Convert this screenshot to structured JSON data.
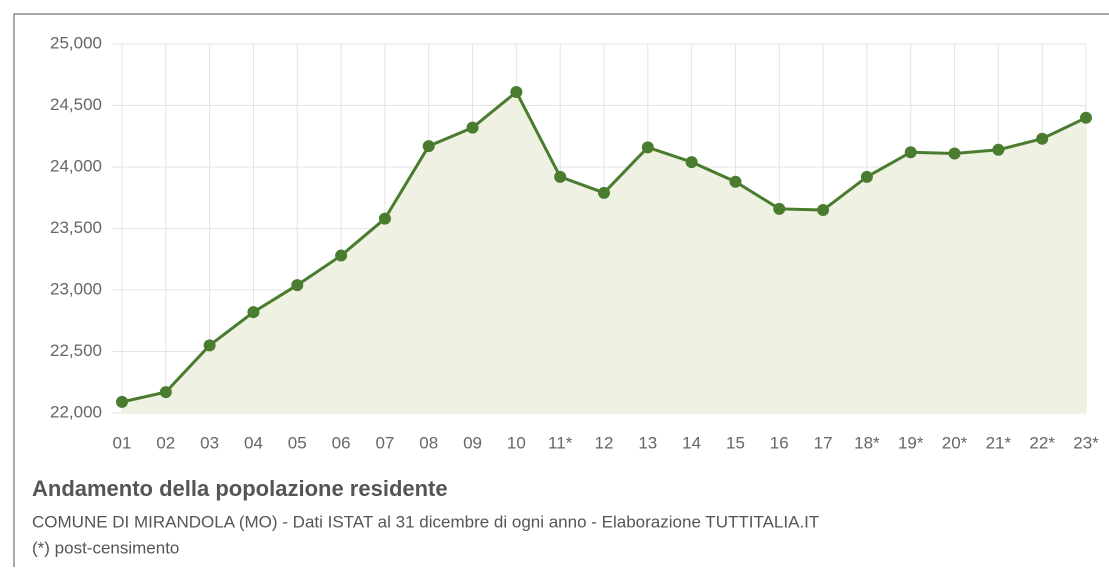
{
  "chart_data": {
    "type": "line",
    "title": "Andamento della popolazione residente",
    "subtitle": "COMUNE DI MIRANDOLA (MO) - Dati ISTAT al 31 dicembre di ogni anno - Elaborazione TUTTITALIA.IT",
    "note": "(*) post-censimento",
    "categories": [
      "01",
      "02",
      "03",
      "04",
      "05",
      "06",
      "07",
      "08",
      "09",
      "10",
      "11*",
      "12",
      "13",
      "14",
      "15",
      "16",
      "17",
      "18*",
      "19*",
      "20*",
      "21*",
      "22*",
      "23*"
    ],
    "series": [
      {
        "name": "Popolazione residente",
        "color": "#4a7c2f",
        "values": [
          22090,
          22170,
          22550,
          22820,
          23040,
          23280,
          23580,
          24170,
          24320,
          24610,
          23920,
          23790,
          24160,
          24040,
          23880,
          23660,
          23650,
          23920,
          24120,
          24110,
          24140,
          24230,
          24400
        ]
      }
    ],
    "area_color": "#eff1e3",
    "ylim": [
      22000,
      25000
    ],
    "yticks": [
      {
        "value": 22000,
        "label": "22,000"
      },
      {
        "value": 22500,
        "label": "22,500"
      },
      {
        "value": 23000,
        "label": "23,000"
      },
      {
        "value": 23500,
        "label": "23,500"
      },
      {
        "value": 24000,
        "label": "24,000"
      },
      {
        "value": 24500,
        "label": "24,500"
      },
      {
        "value": 25000,
        "label": "25,000"
      }
    ],
    "grid": true
  }
}
